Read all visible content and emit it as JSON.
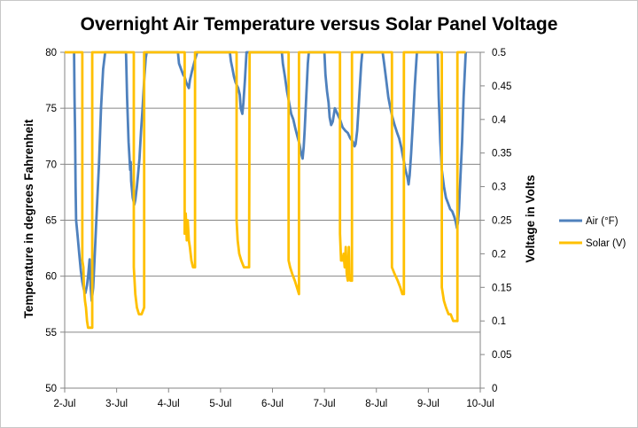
{
  "chart_data": {
    "type": "line",
    "title": "Overnight Air Temperature versus Solar Panel Voltage",
    "xlabel": "",
    "ylabel": "Temperature in degrees Fahrenheit",
    "y2label": "Voltage in Volts",
    "x_ticks": [
      "2-Jul",
      "3-Jul",
      "4-Jul",
      "5-Jul",
      "6-Jul",
      "7-Jul",
      "8-Jul",
      "9-Jul",
      "10-Jul"
    ],
    "xlim": [
      2,
      10
    ],
    "ylim": [
      50,
      80
    ],
    "y_ticks": [
      "50",
      "55",
      "60",
      "65",
      "70",
      "75",
      "80"
    ],
    "y2lim": [
      0,
      0.5
    ],
    "y2_ticks": [
      "0",
      "0.05",
      "0.1",
      "0.15",
      "0.2",
      "0.25",
      "0.3",
      "0.35",
      "0.4",
      "0.45",
      "0.5"
    ],
    "grid": true,
    "legend_position": "right",
    "series": [
      {
        "name": "Air (°F)",
        "axis": "left",
        "color": "#4F81BD",
        "points": [
          [
            2.18,
            80
          ],
          [
            2.19,
            76
          ],
          [
            2.2,
            73
          ],
          [
            2.21,
            68
          ],
          [
            2.22,
            65
          ],
          [
            2.25,
            63.5
          ],
          [
            2.28,
            62
          ],
          [
            2.31,
            60.5
          ],
          [
            2.34,
            59.5
          ],
          [
            2.37,
            58.8
          ],
          [
            2.4,
            58.5
          ],
          [
            2.43,
            59.2
          ],
          [
            2.45,
            60
          ],
          [
            2.48,
            61.5
          ],
          [
            2.5,
            59
          ],
          [
            2.52,
            57.8
          ],
          [
            2.55,
            59
          ],
          [
            2.58,
            62
          ],
          [
            2.62,
            66
          ],
          [
            2.66,
            70
          ],
          [
            2.7,
            75
          ],
          [
            2.74,
            78.5
          ],
          [
            2.78,
            80
          ],
          [
            3.18,
            80
          ],
          [
            3.2,
            76
          ],
          [
            3.23,
            72
          ],
          [
            3.26,
            69.5
          ],
          [
            3.27,
            70.2
          ],
          [
            3.28,
            68.5
          ],
          [
            3.31,
            67
          ],
          [
            3.34,
            66.4
          ],
          [
            3.36,
            66.8
          ],
          [
            3.39,
            68
          ],
          [
            3.41,
            69
          ],
          [
            3.44,
            70.5
          ],
          [
            3.47,
            73
          ],
          [
            3.5,
            75
          ],
          [
            3.53,
            77.5
          ],
          [
            3.56,
            79.5
          ],
          [
            3.58,
            80
          ],
          [
            4.18,
            80
          ],
          [
            4.2,
            79
          ],
          [
            4.24,
            78.5
          ],
          [
            4.28,
            78
          ],
          [
            4.31,
            77.8
          ],
          [
            4.34,
            77.3
          ],
          [
            4.37,
            77
          ],
          [
            4.39,
            76.8
          ],
          [
            4.41,
            77.5
          ],
          [
            4.45,
            78.3
          ],
          [
            4.5,
            79.2
          ],
          [
            4.55,
            80
          ],
          [
            5.18,
            80
          ],
          [
            5.2,
            79.2
          ],
          [
            5.23,
            78.5
          ],
          [
            5.26,
            77.8
          ],
          [
            5.29,
            77.3
          ],
          [
            5.32,
            77
          ],
          [
            5.34,
            76.8
          ],
          [
            5.37,
            76.2
          ],
          [
            5.39,
            75
          ],
          [
            5.42,
            74.5
          ],
          [
            5.44,
            75.5
          ],
          [
            5.47,
            77.5
          ],
          [
            5.5,
            80
          ],
          [
            6.18,
            80
          ],
          [
            6.2,
            79
          ],
          [
            6.24,
            77.8
          ],
          [
            6.28,
            76.5
          ],
          [
            6.32,
            75.5
          ],
          [
            6.36,
            74.5
          ],
          [
            6.4,
            74
          ],
          [
            6.44,
            73.2
          ],
          [
            6.48,
            72.5
          ],
          [
            6.52,
            71.8
          ],
          [
            6.55,
            71
          ],
          [
            6.58,
            70.5
          ],
          [
            6.6,
            71.5
          ],
          [
            6.62,
            73
          ],
          [
            6.65,
            76
          ],
          [
            6.68,
            79
          ],
          [
            6.7,
            80
          ],
          [
            7.0,
            80
          ],
          [
            7.02,
            78
          ],
          [
            7.05,
            76.5
          ],
          [
            7.08,
            75.5
          ],
          [
            7.1,
            74.2
          ],
          [
            7.13,
            73.5
          ],
          [
            7.16,
            73.8
          ],
          [
            7.2,
            75
          ],
          [
            7.25,
            74.5
          ],
          [
            7.3,
            74
          ],
          [
            7.35,
            73.3
          ],
          [
            7.4,
            73
          ],
          [
            7.45,
            72.8
          ],
          [
            7.5,
            72.3
          ],
          [
            7.55,
            72
          ],
          [
            7.58,
            71.6
          ],
          [
            7.6,
            71.8
          ],
          [
            7.63,
            73
          ],
          [
            7.67,
            76
          ],
          [
            7.71,
            79
          ],
          [
            7.73,
            80
          ],
          [
            8.12,
            80
          ],
          [
            8.15,
            79
          ],
          [
            8.19,
            77.5
          ],
          [
            8.23,
            76
          ],
          [
            8.27,
            75
          ],
          [
            8.31,
            74.2
          ],
          [
            8.35,
            73.5
          ],
          [
            8.4,
            72.8
          ],
          [
            8.44,
            72.3
          ],
          [
            8.48,
            71.5
          ],
          [
            8.52,
            70.5
          ],
          [
            8.56,
            69.5
          ],
          [
            8.6,
            68.8
          ],
          [
            8.62,
            68.2
          ],
          [
            8.64,
            69
          ],
          [
            8.67,
            71
          ],
          [
            8.7,
            73.5
          ],
          [
            8.74,
            77
          ],
          [
            8.78,
            80
          ],
          [
            9.18,
            80
          ],
          [
            9.2,
            76
          ],
          [
            9.23,
            72
          ],
          [
            9.26,
            69.5
          ],
          [
            9.3,
            68
          ],
          [
            9.34,
            67
          ],
          [
            9.38,
            66.5
          ],
          [
            9.42,
            66
          ],
          [
            9.46,
            65.8
          ],
          [
            9.5,
            65.3
          ],
          [
            9.53,
            64.8
          ],
          [
            9.55,
            64.3
          ],
          [
            9.57,
            64.8
          ],
          [
            9.59,
            66
          ],
          [
            9.62,
            69
          ],
          [
            9.65,
            72
          ],
          [
            9.68,
            76
          ],
          [
            9.7,
            78
          ],
          [
            9.72,
            80
          ]
        ]
      },
      {
        "name": "Solar (V)",
        "axis": "right",
        "color": "#FFC000",
        "points": [
          [
            2.0,
            0.5
          ],
          [
            2.34,
            0.5
          ],
          [
            2.34,
            0.19
          ],
          [
            2.36,
            0.18
          ],
          [
            2.37,
            0.15
          ],
          [
            2.39,
            0.13
          ],
          [
            2.41,
            0.12
          ],
          [
            2.43,
            0.1
          ],
          [
            2.45,
            0.09
          ],
          [
            2.48,
            0.09
          ],
          [
            2.53,
            0.09
          ],
          [
            2.53,
            0.5
          ],
          [
            3.33,
            0.5
          ],
          [
            3.33,
            0.18
          ],
          [
            3.36,
            0.14
          ],
          [
            3.39,
            0.12
          ],
          [
            3.43,
            0.11
          ],
          [
            3.48,
            0.11
          ],
          [
            3.53,
            0.12
          ],
          [
            3.53,
            0.5
          ],
          [
            4.31,
            0.5
          ],
          [
            4.31,
            0.23
          ],
          [
            4.33,
            0.26
          ],
          [
            4.35,
            0.22
          ],
          [
            4.37,
            0.25
          ],
          [
            4.39,
            0.22
          ],
          [
            4.41,
            0.21
          ],
          [
            4.44,
            0.19
          ],
          [
            4.47,
            0.18
          ],
          [
            4.51,
            0.18
          ],
          [
            4.51,
            0.5
          ],
          [
            5.31,
            0.5
          ],
          [
            5.31,
            0.25
          ],
          [
            5.33,
            0.22
          ],
          [
            5.36,
            0.2
          ],
          [
            5.4,
            0.19
          ],
          [
            5.45,
            0.18
          ],
          [
            5.55,
            0.18
          ],
          [
            5.56,
            0.5
          ],
          [
            6.31,
            0.5
          ],
          [
            6.31,
            0.19
          ],
          [
            6.34,
            0.18
          ],
          [
            6.38,
            0.17
          ],
          [
            6.43,
            0.16
          ],
          [
            6.47,
            0.15
          ],
          [
            6.51,
            0.14
          ],
          [
            6.51,
            0.5
          ],
          [
            7.3,
            0.5
          ],
          [
            7.3,
            0.23
          ],
          [
            7.32,
            0.19
          ],
          [
            7.35,
            0.19
          ],
          [
            7.37,
            0.2
          ],
          [
            7.39,
            0.18
          ],
          [
            7.41,
            0.21
          ],
          [
            7.43,
            0.17
          ],
          [
            7.45,
            0.16
          ],
          [
            7.47,
            0.21
          ],
          [
            7.48,
            0.17
          ],
          [
            7.5,
            0.16
          ],
          [
            7.53,
            0.16
          ],
          [
            7.53,
            0.5
          ],
          [
            8.3,
            0.5
          ],
          [
            8.3,
            0.18
          ],
          [
            8.35,
            0.17
          ],
          [
            8.41,
            0.16
          ],
          [
            8.46,
            0.15
          ],
          [
            8.5,
            0.14
          ],
          [
            8.53,
            0.14
          ],
          [
            8.53,
            0.5
          ],
          [
            9.26,
            0.5
          ],
          [
            9.26,
            0.15
          ],
          [
            9.3,
            0.13
          ],
          [
            9.34,
            0.12
          ],
          [
            9.39,
            0.11
          ],
          [
            9.43,
            0.11
          ],
          [
            9.48,
            0.1
          ],
          [
            9.56,
            0.1
          ],
          [
            9.56,
            0.5
          ],
          [
            9.72,
            0.5
          ]
        ]
      }
    ]
  }
}
